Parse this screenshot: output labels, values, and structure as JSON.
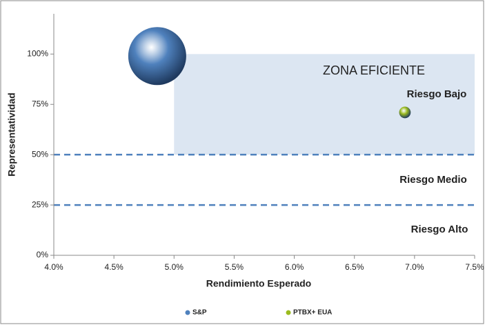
{
  "chart_data": {
    "type": "bubble",
    "x_label": "Rendimiento Esperado",
    "y_label": "Representatividad",
    "xlim": [
      4.0,
      7.5
    ],
    "xticks": [
      {
        "value": 4.0,
        "label": "4.0%"
      },
      {
        "value": 4.5,
        "label": "4.5%"
      },
      {
        "value": 5.0,
        "label": "5.0%"
      },
      {
        "value": 5.5,
        "label": "5.5%"
      },
      {
        "value": 6.0,
        "label": "6.0%"
      },
      {
        "value": 6.5,
        "label": "6.5%"
      },
      {
        "value": 7.0,
        "label": "7.0%"
      },
      {
        "value": 7.5,
        "label": "7.5%"
      }
    ],
    "ylim": [
      0,
      120
    ],
    "yticks": [
      {
        "value": 0,
        "label": "0%"
      },
      {
        "value": 25,
        "label": "25%"
      },
      {
        "value": 50,
        "label": "50%"
      },
      {
        "value": 75,
        "label": "75%"
      },
      {
        "value": 100,
        "label": "100%"
      }
    ],
    "efficient_zone": {
      "label": "ZONA EFICIENTE",
      "x": [
        5.0,
        7.5
      ],
      "y": [
        50,
        100
      ],
      "color": "#dce6f2"
    },
    "reference_lines": [
      50,
      25
    ],
    "annotations": [
      "Riesgo Bajo",
      "Riesgo Medio",
      "Riesgo Alto"
    ],
    "series": [
      {
        "name": "S&P",
        "color": "#4f81bd",
        "x": [
          4.86
        ],
        "values": [
          99
        ],
        "sizes": [
          100
        ]
      },
      {
        "name": "PTBX+ EUA",
        "color": "#9bbb1f",
        "x": [
          6.92
        ],
        "values": [
          71
        ],
        "sizes": [
          4
        ]
      }
    ]
  }
}
